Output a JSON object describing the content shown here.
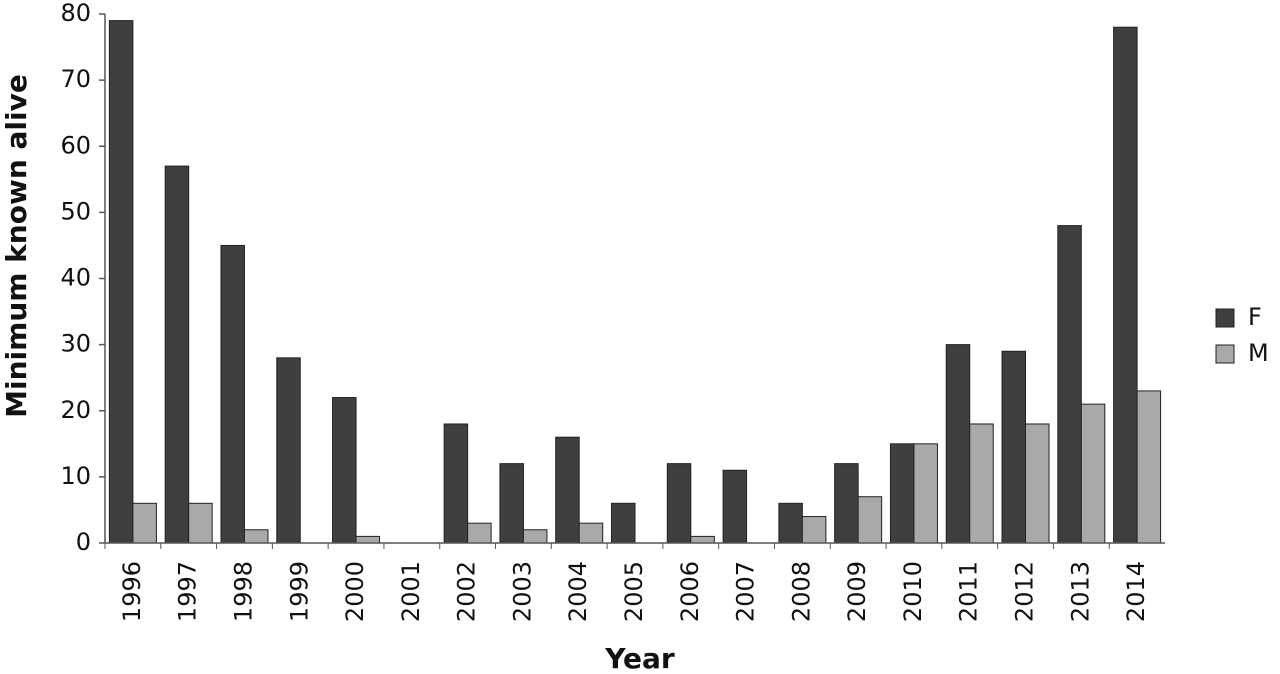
{
  "chart_data": {
    "type": "bar",
    "x_label": "Year",
    "y_label": "Minimum known alive",
    "categories": [
      "1996",
      "1997",
      "1998",
      "1999",
      "2000",
      "2001",
      "2002",
      "2003",
      "2004",
      "2005",
      "2006",
      "2007",
      "2008",
      "2009",
      "2010",
      "2011",
      "2012",
      "2013",
      "2014"
    ],
    "series": [
      {
        "name": "F",
        "color": "#3f3f3f",
        "values": [
          79,
          57,
          45,
          28,
          22,
          0,
          18,
          12,
          16,
          6,
          12,
          11,
          6,
          12,
          15,
          30,
          29,
          48,
          78
        ]
      },
      {
        "name": "M",
        "color": "#a9a9a9",
        "values": [
          6,
          6,
          2,
          0,
          1,
          0,
          3,
          2,
          3,
          0,
          1,
          0,
          4,
          7,
          15,
          18,
          18,
          21,
          23
        ]
      }
    ],
    "ylim": [
      0,
      80
    ],
    "yticks": [
      0,
      10,
      20,
      30,
      40,
      50,
      60,
      70,
      80
    ],
    "grid": false,
    "legend": "right"
  }
}
